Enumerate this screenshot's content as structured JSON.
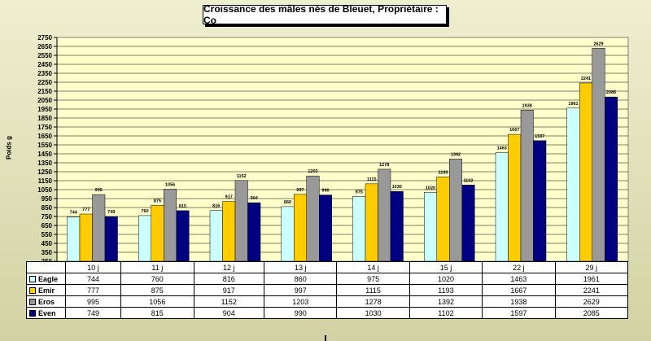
{
  "chart_data": {
    "type": "bar",
    "title": "Croissance des mâles nés de Bleuet, Propriétaire : Co",
    "xlabel": "",
    "ylabel": "Poids g",
    "ylim": [
      250,
      2750
    ],
    "ytick_step": 100,
    "yticks": [
      "250",
      "350",
      "450",
      "550",
      "650",
      "750",
      "850",
      "950",
      "1050",
      "1150",
      "1250",
      "1350",
      "1450",
      "1550",
      "1650",
      "1750",
      "1850",
      "1950",
      "2050",
      "2150",
      "2250",
      "2350",
      "2450",
      "2550",
      "2650",
      "2750"
    ],
    "grid": true,
    "legend": "data-table",
    "categories": [
      "10 j",
      "11 j",
      "12 j",
      "13 j",
      "14 j",
      "15 j",
      "22 j",
      "29 j"
    ],
    "series": [
      {
        "name": "Eagle",
        "color": "#ccffff",
        "values": [
          744,
          760,
          816,
          860,
          975,
          1020,
          1463,
          1961
        ]
      },
      {
        "name": "Emir",
        "color": "#ffcc00",
        "values": [
          777,
          875,
          917,
          997,
          1115,
          1193,
          1667,
          2241
        ]
      },
      {
        "name": "Eros",
        "color": "#999999",
        "values": [
          995,
          1056,
          1152,
          1203,
          1278,
          1392,
          1938,
          2629
        ]
      },
      {
        "name": "Even",
        "color": "#000080",
        "values": [
          749,
          815,
          904,
          990,
          1030,
          1102,
          1597,
          2085
        ]
      }
    ]
  }
}
